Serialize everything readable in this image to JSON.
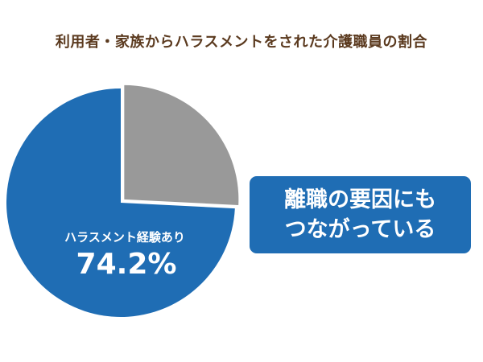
{
  "title": "利用者・家族からハラスメントをされた介護職員の割合",
  "chart_data": {
    "type": "pie",
    "title": "利用者・家族からハラスメントをされた介護職員の割合",
    "slices": [
      {
        "label": "ハラスメント経験あり",
        "value": 74.2,
        "value_label": "74.2%",
        "color": "#1f6db4",
        "exploded": false
      },
      {
        "label": "",
        "value": 25.8,
        "value_label": "",
        "color": "#999999",
        "exploded": true
      }
    ]
  },
  "callout": {
    "lines": [
      "離職の要因にも",
      "つながっている"
    ],
    "background": "#1f6db4"
  }
}
